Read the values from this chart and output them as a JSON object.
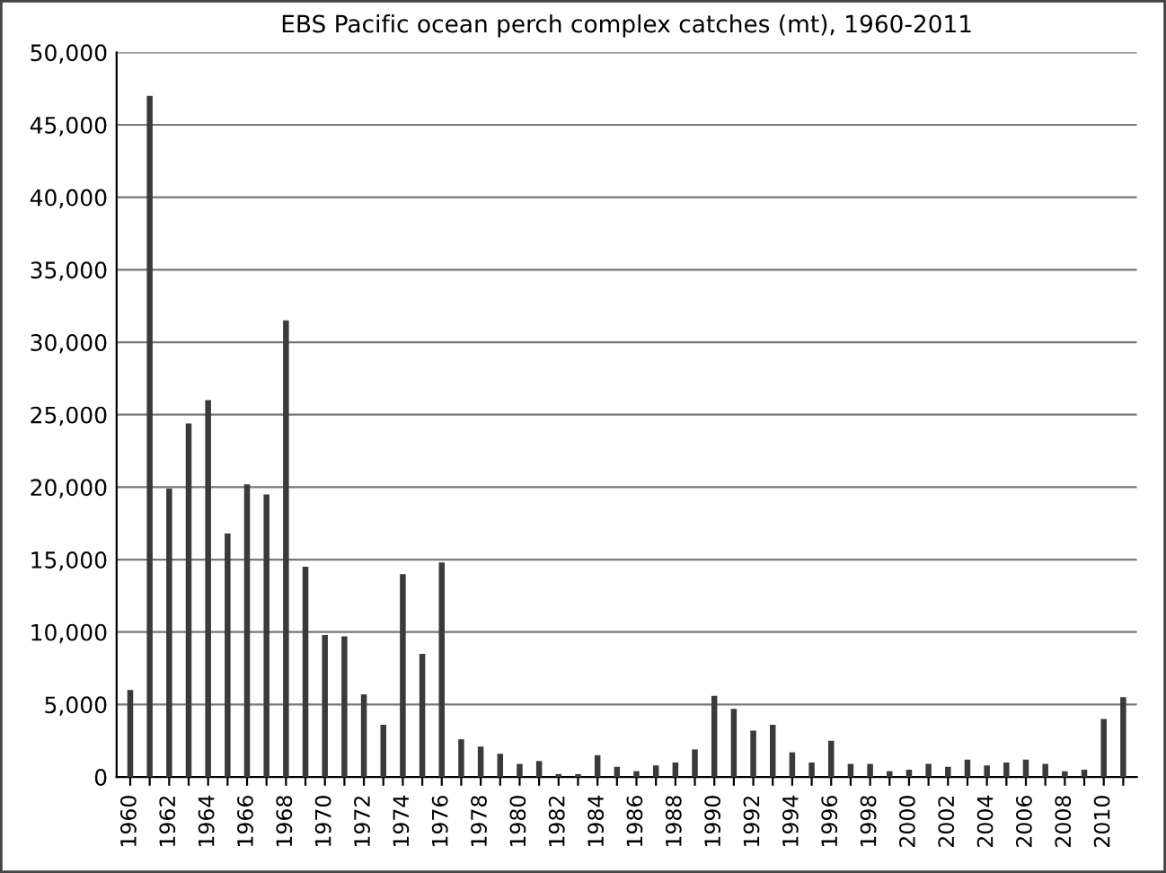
{
  "chart_data": {
    "type": "bar",
    "title": "EBS Pacific ocean perch complex catches (mt), 1960-2011",
    "categories": [
      "1960",
      null,
      "1962",
      null,
      "1964",
      null,
      "1966",
      null,
      "1968",
      null,
      "1970",
      null,
      "1972",
      null,
      "1974",
      null,
      "1976",
      null,
      "1978",
      null,
      "1980",
      null,
      "1982",
      null,
      "1984",
      null,
      "1986",
      null,
      "1988",
      null,
      "1990",
      null,
      "1992",
      null,
      "1994",
      null,
      "1996",
      null,
      "1998",
      null,
      "2000",
      null,
      "2002",
      null,
      "2004",
      null,
      "2006",
      null,
      "2008",
      null,
      "2010",
      null
    ],
    "values": [
      6000,
      47000,
      19900,
      24400,
      26000,
      16800,
      20200,
      19500,
      31500,
      14500,
      9800,
      9700,
      5700,
      3600,
      14000,
      8500,
      14800,
      2600,
      2100,
      1600,
      900,
      1100,
      200,
      200,
      1500,
      700,
      400,
      800,
      1000,
      1900,
      5600,
      4700,
      3200,
      3600,
      1700,
      1000,
      2500,
      900,
      900,
      400,
      500,
      900,
      700,
      1200,
      800,
      1000,
      1200,
      900,
      400,
      500,
      4000,
      5500
    ],
    "color": "#3a3a3a",
    "ylim": [
      0,
      50000
    ],
    "yticks": [
      {
        "value": 0,
        "label": "0"
      },
      {
        "value": 5000,
        "label": "5,000"
      },
      {
        "value": 10000,
        "label": "10,000"
      },
      {
        "value": 15000,
        "label": "15,000"
      },
      {
        "value": 20000,
        "label": "20,000"
      },
      {
        "value": 25000,
        "label": "25,000"
      },
      {
        "value": 30000,
        "label": "30,000"
      },
      {
        "value": 35000,
        "label": "35,000"
      },
      {
        "value": 40000,
        "label": "40,000"
      },
      {
        "value": 45000,
        "label": "45,000"
      },
      {
        "value": 50000,
        "label": "50,000"
      }
    ],
    "grid": "y"
  }
}
